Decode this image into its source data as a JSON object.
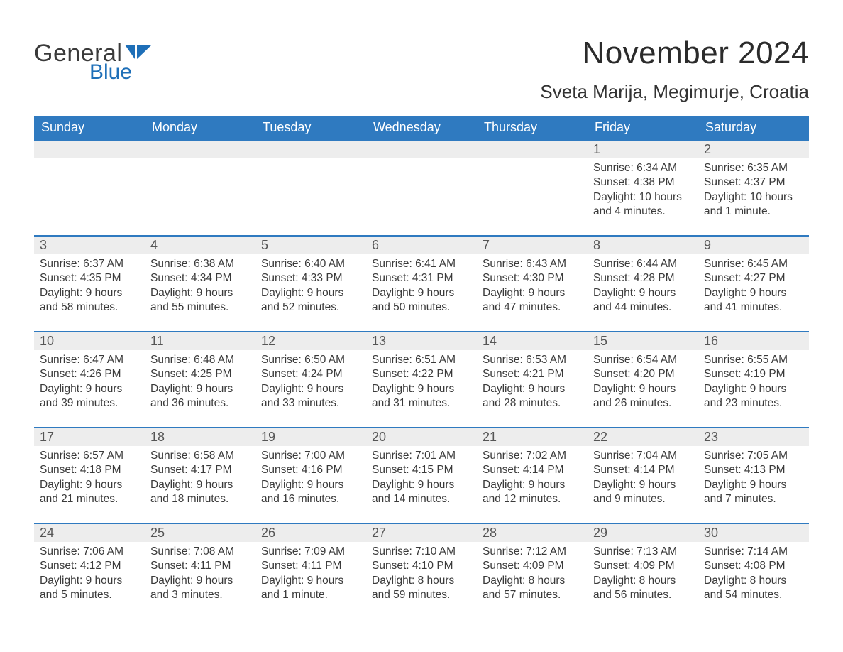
{
  "colors": {
    "header_bg": "#2f7ac0",
    "header_text": "#ffffff",
    "row_divider": "#2f7ac0",
    "daynum_bg": "#ededed",
    "text": "#3a3a3a",
    "logo_gray": "#3a3a3a",
    "logo_blue": "#1e6fb8",
    "page_bg": "#ffffff"
  },
  "logo": {
    "word1": "General",
    "word2": "Blue"
  },
  "title": "November 2024",
  "location": "Sveta Marija, Megimurje, Croatia",
  "weekdays": [
    "Sunday",
    "Monday",
    "Tuesday",
    "Wednesday",
    "Thursday",
    "Friday",
    "Saturday"
  ],
  "labels": {
    "sunrise": "Sunrise: ",
    "sunset": "Sunset: ",
    "daylight": "Daylight: "
  },
  "weeks": [
    [
      null,
      null,
      null,
      null,
      null,
      {
        "num": "1",
        "sunrise": "6:34 AM",
        "sunset": "4:38 PM",
        "daylight": "10 hours and 4 minutes."
      },
      {
        "num": "2",
        "sunrise": "6:35 AM",
        "sunset": "4:37 PM",
        "daylight": "10 hours and 1 minute."
      }
    ],
    [
      {
        "num": "3",
        "sunrise": "6:37 AM",
        "sunset": "4:35 PM",
        "daylight": "9 hours and 58 minutes."
      },
      {
        "num": "4",
        "sunrise": "6:38 AM",
        "sunset": "4:34 PM",
        "daylight": "9 hours and 55 minutes."
      },
      {
        "num": "5",
        "sunrise": "6:40 AM",
        "sunset": "4:33 PM",
        "daylight": "9 hours and 52 minutes."
      },
      {
        "num": "6",
        "sunrise": "6:41 AM",
        "sunset": "4:31 PM",
        "daylight": "9 hours and 50 minutes."
      },
      {
        "num": "7",
        "sunrise": "6:43 AM",
        "sunset": "4:30 PM",
        "daylight": "9 hours and 47 minutes."
      },
      {
        "num": "8",
        "sunrise": "6:44 AM",
        "sunset": "4:28 PM",
        "daylight": "9 hours and 44 minutes."
      },
      {
        "num": "9",
        "sunrise": "6:45 AM",
        "sunset": "4:27 PM",
        "daylight": "9 hours and 41 minutes."
      }
    ],
    [
      {
        "num": "10",
        "sunrise": "6:47 AM",
        "sunset": "4:26 PM",
        "daylight": "9 hours and 39 minutes."
      },
      {
        "num": "11",
        "sunrise": "6:48 AM",
        "sunset": "4:25 PM",
        "daylight": "9 hours and 36 minutes."
      },
      {
        "num": "12",
        "sunrise": "6:50 AM",
        "sunset": "4:24 PM",
        "daylight": "9 hours and 33 minutes."
      },
      {
        "num": "13",
        "sunrise": "6:51 AM",
        "sunset": "4:22 PM",
        "daylight": "9 hours and 31 minutes."
      },
      {
        "num": "14",
        "sunrise": "6:53 AM",
        "sunset": "4:21 PM",
        "daylight": "9 hours and 28 minutes."
      },
      {
        "num": "15",
        "sunrise": "6:54 AM",
        "sunset": "4:20 PM",
        "daylight": "9 hours and 26 minutes."
      },
      {
        "num": "16",
        "sunrise": "6:55 AM",
        "sunset": "4:19 PM",
        "daylight": "9 hours and 23 minutes."
      }
    ],
    [
      {
        "num": "17",
        "sunrise": "6:57 AM",
        "sunset": "4:18 PM",
        "daylight": "9 hours and 21 minutes."
      },
      {
        "num": "18",
        "sunrise": "6:58 AM",
        "sunset": "4:17 PM",
        "daylight": "9 hours and 18 minutes."
      },
      {
        "num": "19",
        "sunrise": "7:00 AM",
        "sunset": "4:16 PM",
        "daylight": "9 hours and 16 minutes."
      },
      {
        "num": "20",
        "sunrise": "7:01 AM",
        "sunset": "4:15 PM",
        "daylight": "9 hours and 14 minutes."
      },
      {
        "num": "21",
        "sunrise": "7:02 AM",
        "sunset": "4:14 PM",
        "daylight": "9 hours and 12 minutes."
      },
      {
        "num": "22",
        "sunrise": "7:04 AM",
        "sunset": "4:14 PM",
        "daylight": "9 hours and 9 minutes."
      },
      {
        "num": "23",
        "sunrise": "7:05 AM",
        "sunset": "4:13 PM",
        "daylight": "9 hours and 7 minutes."
      }
    ],
    [
      {
        "num": "24",
        "sunrise": "7:06 AM",
        "sunset": "4:12 PM",
        "daylight": "9 hours and 5 minutes."
      },
      {
        "num": "25",
        "sunrise": "7:08 AM",
        "sunset": "4:11 PM",
        "daylight": "9 hours and 3 minutes."
      },
      {
        "num": "26",
        "sunrise": "7:09 AM",
        "sunset": "4:11 PM",
        "daylight": "9 hours and 1 minute."
      },
      {
        "num": "27",
        "sunrise": "7:10 AM",
        "sunset": "4:10 PM",
        "daylight": "8 hours and 59 minutes."
      },
      {
        "num": "28",
        "sunrise": "7:12 AM",
        "sunset": "4:09 PM",
        "daylight": "8 hours and 57 minutes."
      },
      {
        "num": "29",
        "sunrise": "7:13 AM",
        "sunset": "4:09 PM",
        "daylight": "8 hours and 56 minutes."
      },
      {
        "num": "30",
        "sunrise": "7:14 AM",
        "sunset": "4:08 PM",
        "daylight": "8 hours and 54 minutes."
      }
    ]
  ]
}
